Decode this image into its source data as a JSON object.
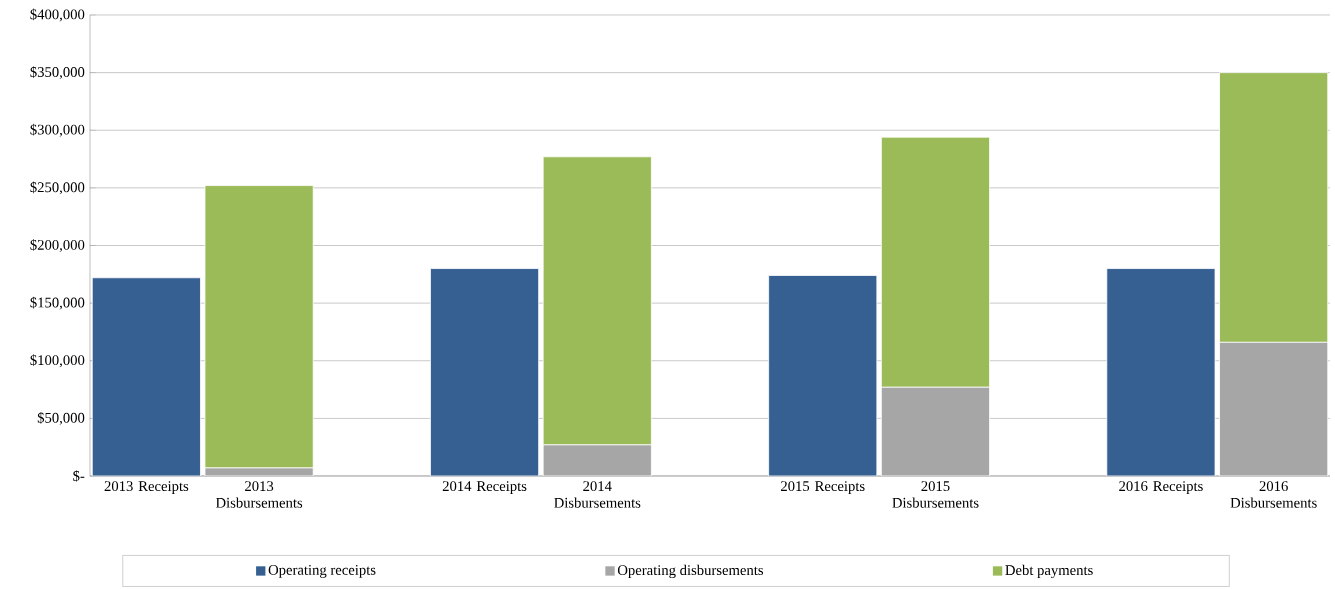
{
  "chart_data": {
    "type": "bar",
    "stacked": true,
    "categories": [
      "2013 Receipts",
      "2013 Disbursements",
      null,
      "2014 Receipts",
      "2014 Disbursements",
      null,
      "2015 Receipts",
      "2015 Disbursements",
      null,
      "2016 Receipts",
      "2016 Disbursements"
    ],
    "series": [
      {
        "name": "Operating receipts",
        "color": "#366092",
        "values": [
          172000,
          null,
          null,
          180000,
          null,
          null,
          174000,
          null,
          null,
          180000,
          null
        ]
      },
      {
        "name": "Operating disbursements",
        "color": "#a6a6a6",
        "values": [
          null,
          7000,
          null,
          null,
          27000,
          null,
          null,
          77000,
          null,
          null,
          116000
        ]
      },
      {
        "name": "Debt payments",
        "color": "#9bbb59",
        "values": [
          null,
          245000,
          null,
          null,
          250000,
          null,
          null,
          217000,
          null,
          null,
          234000
        ]
      }
    ],
    "ylim": [
      0,
      400000
    ],
    "yticks": [
      {
        "value": 0,
        "label": "$-"
      },
      {
        "value": 50000,
        "label": "$50,000"
      },
      {
        "value": 100000,
        "label": "$100,000"
      },
      {
        "value": 150000,
        "label": "$150,000"
      },
      {
        "value": 200000,
        "label": "$200,000"
      },
      {
        "value": 250000,
        "label": "$250,000"
      },
      {
        "value": 300000,
        "label": "$300,000"
      },
      {
        "value": 350000,
        "label": "$350,000"
      },
      {
        "value": 400000,
        "label": "$400,000"
      }
    ],
    "grid": "y",
    "legend": "bottom"
  }
}
